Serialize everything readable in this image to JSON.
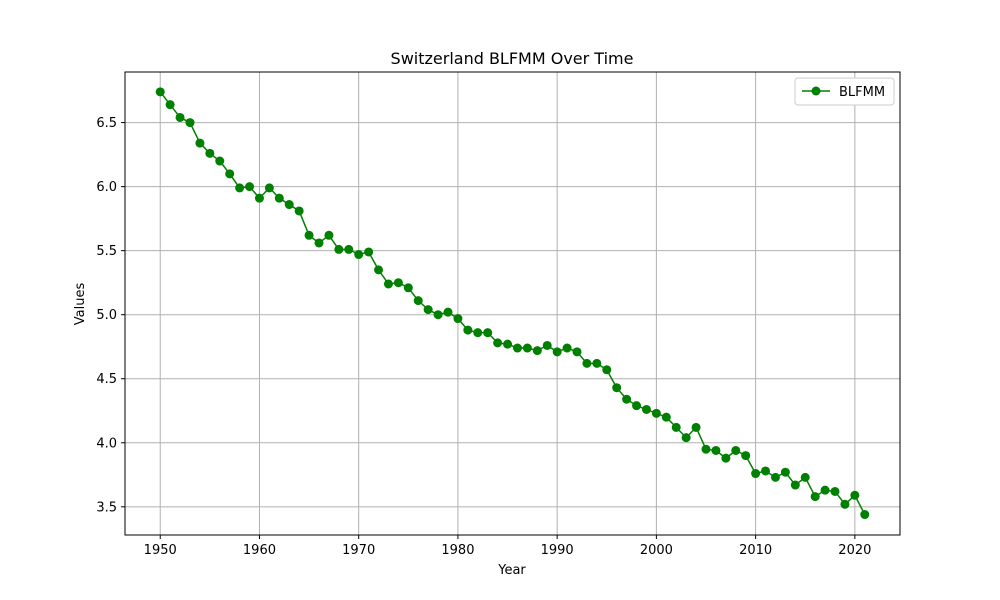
{
  "chart_data": {
    "type": "line",
    "title": "Switzerland BLFMM Over Time",
    "xlabel": "Year",
    "ylabel": "Values",
    "xlim": [
      1946.45,
      2024.55
    ],
    "ylim": [
      3.28,
      6.895
    ],
    "x_ticks": [
      1950,
      1960,
      1970,
      1980,
      1990,
      2000,
      2010,
      2020
    ],
    "y_ticks": [
      3.5,
      4.0,
      4.5,
      5.0,
      5.5,
      6.0,
      6.5
    ],
    "x_tick_labels": [
      "1950",
      "1960",
      "1970",
      "1980",
      "1990",
      "2000",
      "2010",
      "2020"
    ],
    "y_tick_labels": [
      "3.5",
      "4.0",
      "4.5",
      "5.0",
      "5.5",
      "6.0",
      "6.5"
    ],
    "grid": true,
    "legend_position": "top-right",
    "series": [
      {
        "name": "BLFMM",
        "color": "#008000",
        "marker": "circle",
        "x": [
          1950,
          1951,
          1952,
          1953,
          1954,
          1955,
          1956,
          1957,
          1958,
          1959,
          1960,
          1961,
          1962,
          1963,
          1964,
          1965,
          1966,
          1967,
          1968,
          1969,
          1970,
          1971,
          1972,
          1973,
          1974,
          1975,
          1976,
          1977,
          1978,
          1979,
          1980,
          1981,
          1982,
          1983,
          1984,
          1985,
          1986,
          1987,
          1988,
          1989,
          1990,
          1991,
          1992,
          1993,
          1994,
          1995,
          1996,
          1997,
          1998,
          1999,
          2000,
          2001,
          2002,
          2003,
          2004,
          2005,
          2006,
          2007,
          2008,
          2009,
          2010,
          2011,
          2012,
          2013,
          2014,
          2015,
          2016,
          2017,
          2018,
          2019,
          2020,
          2021
        ],
        "values": [
          6.74,
          6.64,
          6.54,
          6.5,
          6.34,
          6.26,
          6.2,
          6.1,
          5.99,
          6.0,
          5.91,
          5.99,
          5.91,
          5.86,
          5.81,
          5.62,
          5.56,
          5.62,
          5.51,
          5.51,
          5.47,
          5.49,
          5.35,
          5.24,
          5.25,
          5.21,
          5.11,
          5.04,
          5.0,
          5.02,
          4.97,
          4.88,
          4.86,
          4.86,
          4.78,
          4.77,
          4.74,
          4.74,
          4.72,
          4.76,
          4.71,
          4.74,
          4.71,
          4.62,
          4.62,
          4.57,
          4.43,
          4.34,
          4.29,
          4.26,
          4.23,
          4.2,
          4.12,
          4.04,
          4.12,
          3.95,
          3.94,
          3.88,
          3.94,
          3.9,
          3.76,
          3.78,
          3.73,
          3.77,
          3.67,
          3.73,
          3.58,
          3.63,
          3.62,
          3.52,
          3.59,
          3.44
        ]
      }
    ]
  }
}
